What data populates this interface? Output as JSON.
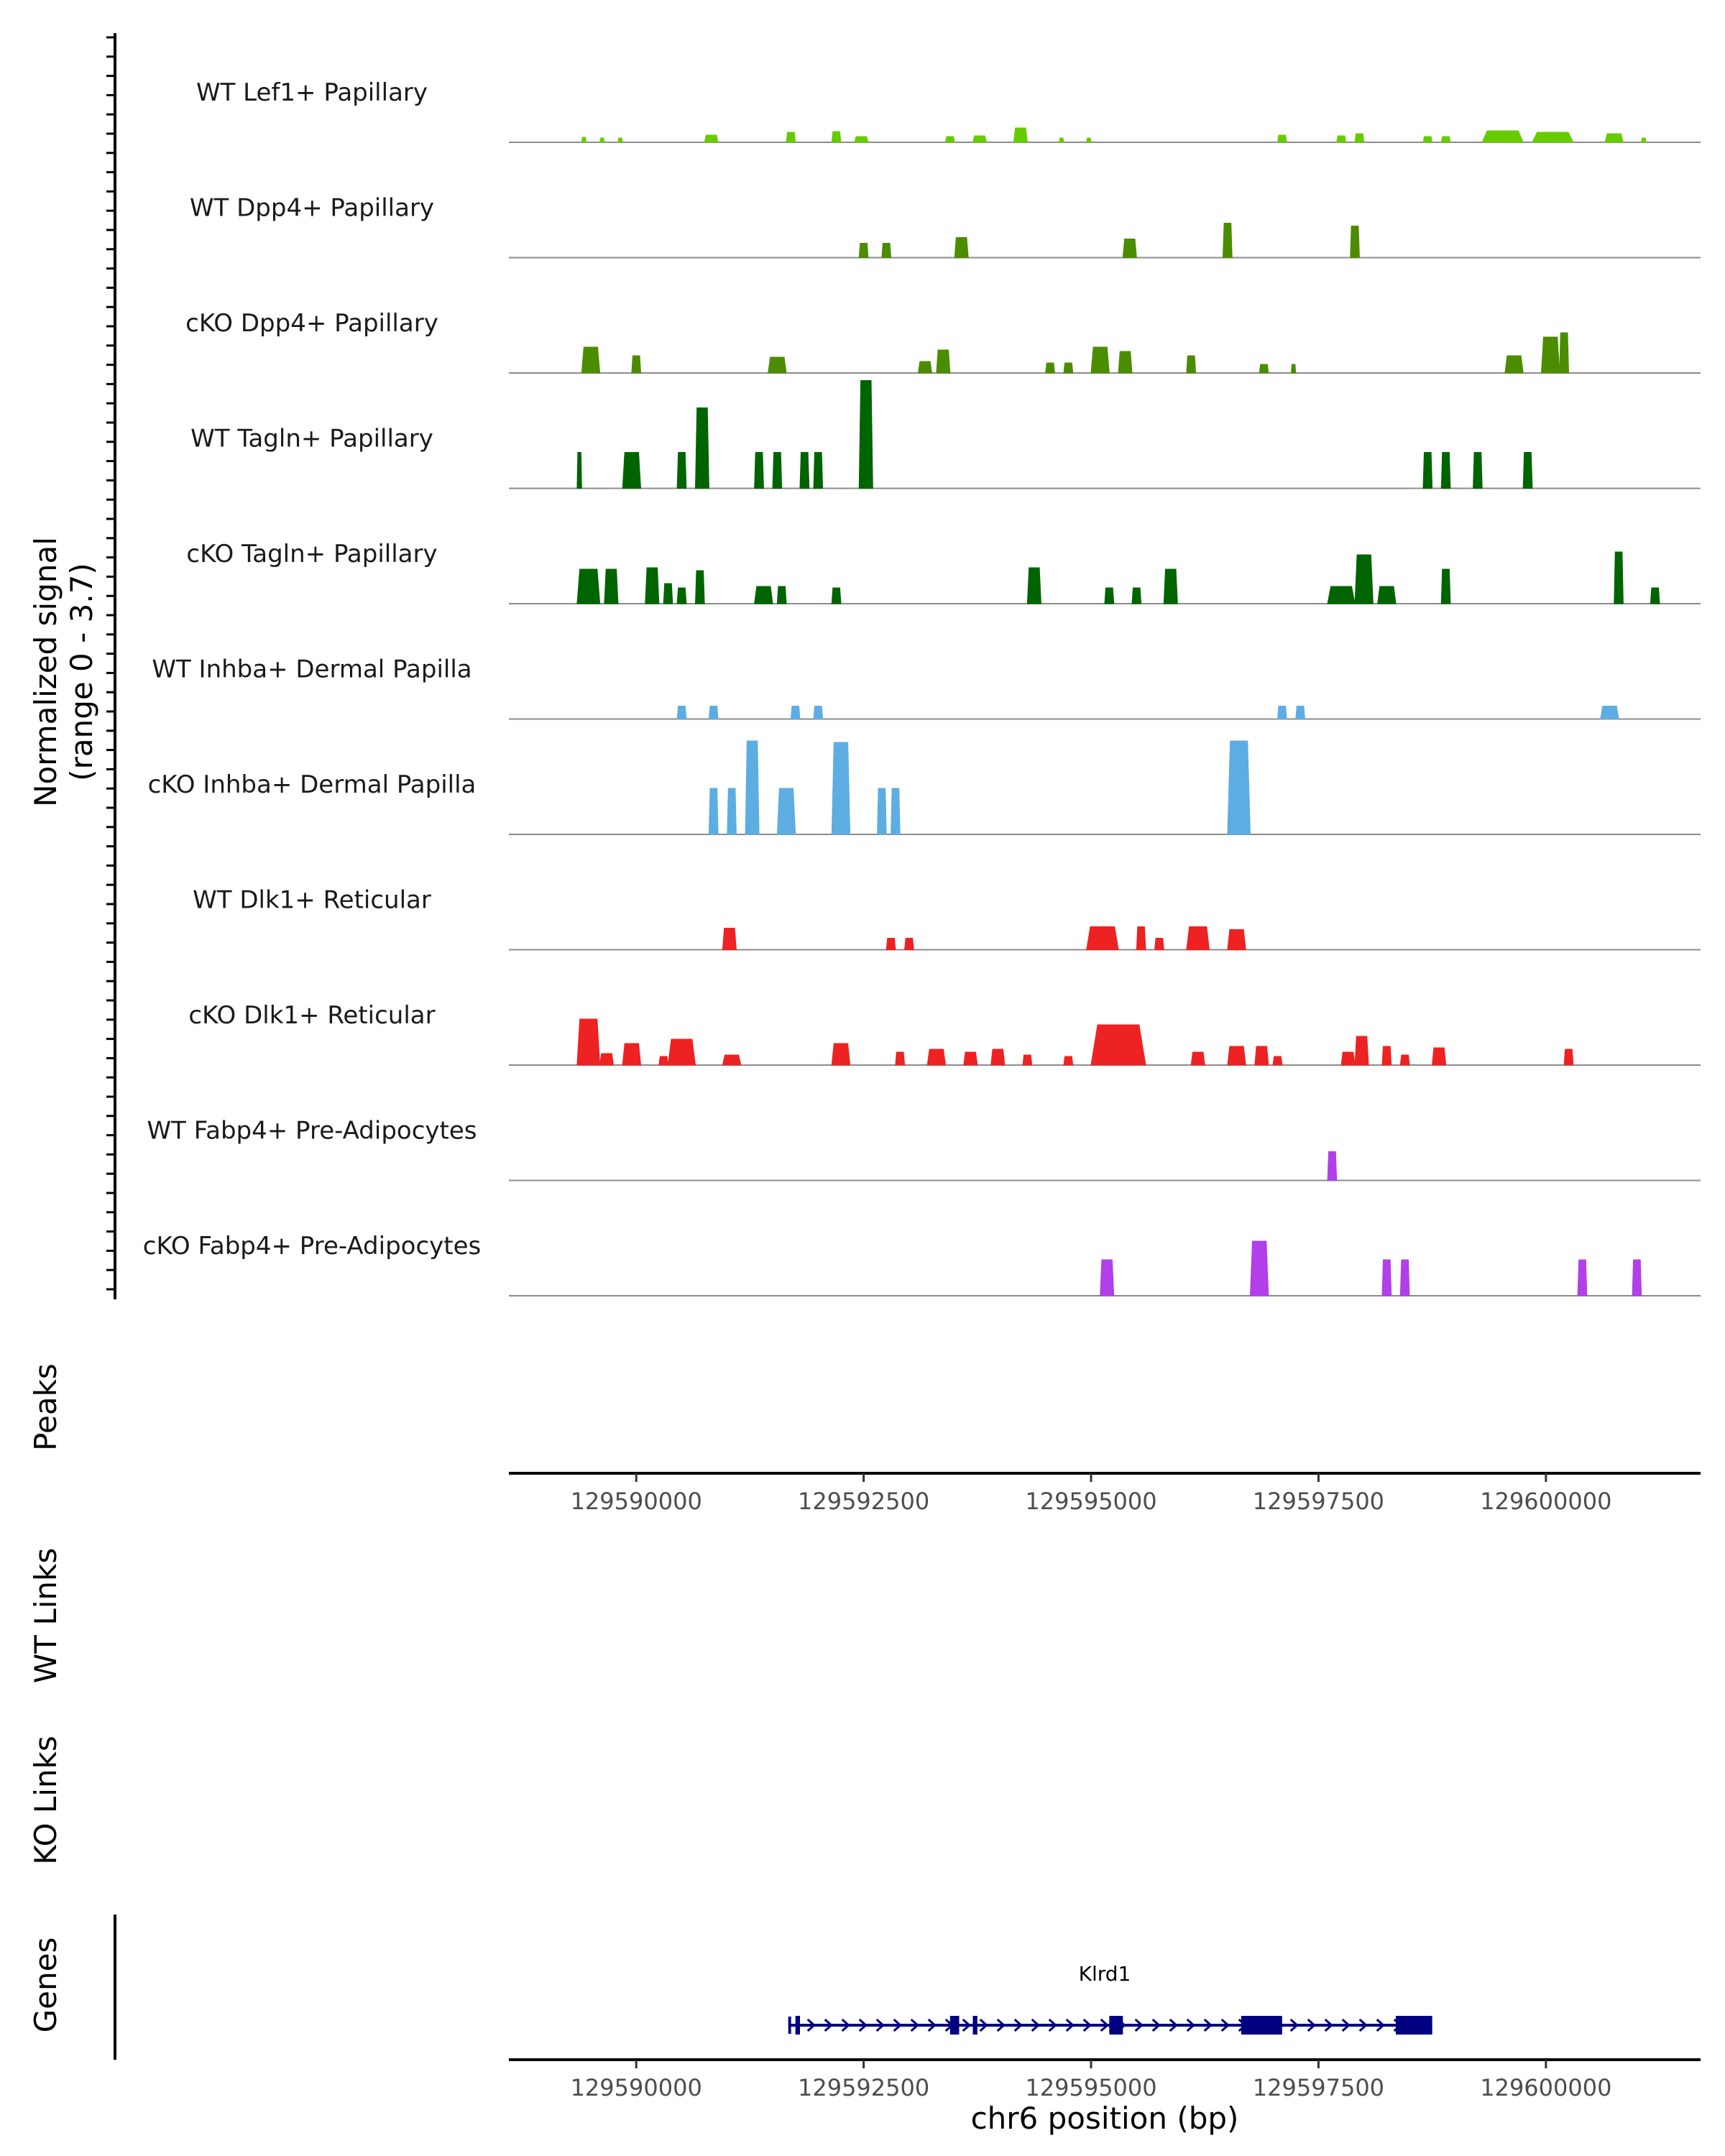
{
  "chart_data": {
    "type": "coverage-track",
    "chromosome": "chr6",
    "xlim": [
      129588600,
      129601700
    ],
    "x_ticks": [
      129590000,
      129592500,
      129595000,
      129597500,
      129600000
    ],
    "x_tick_labels": [
      "129590000",
      "129592500",
      "129595000",
      "129597500",
      "129600000"
    ],
    "xlabel": "chr6 position (bp)",
    "ylabel_signal": [
      "Normalized signal",
      "(range 0 - 3.7)"
    ],
    "y_range": [
      0,
      3.7
    ],
    "section_labels": {
      "peaks": "Peaks",
      "wt_links": "WT Links",
      "ko_links": "KO Links",
      "genes": "Genes"
    },
    "tracks": [
      {
        "name": "WT Lef1+ Papillary",
        "color": "#66CC00",
        "peaks": [
          [
            129589400,
            129589450,
            0.35
          ],
          [
            129589600,
            129589650,
            0.3
          ],
          [
            129589800,
            129589850,
            0.3
          ],
          [
            129590750,
            129590900,
            0.5
          ],
          [
            129591650,
            129591750,
            0.7
          ],
          [
            129592150,
            129592250,
            0.75
          ],
          [
            129592400,
            129592550,
            0.4
          ],
          [
            129593400,
            129593500,
            0.4
          ],
          [
            129593700,
            129593850,
            0.45
          ],
          [
            129594150,
            129594300,
            1.0
          ],
          [
            129594650,
            129594700,
            0.3
          ],
          [
            129594950,
            129595000,
            0.3
          ],
          [
            129597050,
            129597150,
            0.5
          ],
          [
            129597700,
            129597800,
            0.45
          ],
          [
            129597900,
            129598000,
            0.6
          ],
          [
            129598650,
            129598750,
            0.4
          ],
          [
            129598850,
            129598950,
            0.4
          ],
          [
            129599300,
            129599750,
            0.8
          ],
          [
            129599850,
            129600300,
            0.7
          ],
          [
            129600650,
            129600850,
            0.6
          ],
          [
            129601050,
            129601100,
            0.3
          ]
        ]
      },
      {
        "name": "WT Dpp4+ Papillary",
        "color": "#4C8C00",
        "peaks": [
          [
            129592450,
            129592550,
            1.0
          ],
          [
            129592700,
            129592800,
            1.0
          ],
          [
            129593500,
            129593650,
            1.4
          ],
          [
            129595350,
            129595500,
            1.3
          ],
          [
            129596450,
            129596550,
            2.4
          ],
          [
            129597850,
            129597950,
            2.2
          ]
        ]
      },
      {
        "name": "cKO Dpp4+ Papillary",
        "color": "#4C8C00",
        "peaks": [
          [
            129589400,
            129589600,
            1.8
          ],
          [
            129589950,
            129590050,
            1.2
          ],
          [
            129591450,
            129591650,
            1.1
          ],
          [
            129593100,
            129593250,
            0.8
          ],
          [
            129593300,
            129593450,
            1.6
          ],
          [
            129594500,
            129594600,
            0.7
          ],
          [
            129594700,
            129594800,
            0.7
          ],
          [
            129595000,
            129595200,
            1.8
          ],
          [
            129595300,
            129595450,
            1.5
          ],
          [
            129596050,
            129596150,
            1.2
          ],
          [
            129596850,
            129596950,
            0.6
          ],
          [
            129597200,
            129597250,
            0.6
          ],
          [
            129599550,
            129599750,
            1.2
          ],
          [
            129599950,
            129600150,
            2.5
          ],
          [
            129600150,
            129600250,
            2.8
          ]
        ]
      },
      {
        "name": "WT Tagln+ Papillary",
        "color": "#006400",
        "peaks": [
          [
            129589350,
            129589400,
            2.5
          ],
          [
            129589850,
            129590050,
            2.5
          ],
          [
            129590450,
            129590550,
            2.5
          ],
          [
            129590650,
            129590800,
            5.6
          ],
          [
            129591300,
            129591400,
            2.5
          ],
          [
            129591500,
            129591600,
            2.5
          ],
          [
            129591800,
            129591900,
            2.5
          ],
          [
            129591950,
            129592050,
            2.5
          ],
          [
            129592450,
            129592600,
            7.5
          ],
          [
            129598650,
            129598750,
            2.5
          ],
          [
            129598850,
            129598950,
            2.5
          ],
          [
            129599200,
            129599300,
            2.5
          ],
          [
            129599750,
            129599850,
            2.5
          ]
        ]
      },
      {
        "name": "cKO Tagln+ Papillary",
        "color": "#006400",
        "peaks": [
          [
            129589350,
            129589600,
            2.4
          ],
          [
            129589650,
            129589800,
            2.4
          ],
          [
            129590100,
            129590250,
            2.5
          ],
          [
            129590300,
            129590400,
            1.4
          ],
          [
            129590450,
            129590550,
            1.1
          ],
          [
            129590650,
            129590750,
            2.3
          ],
          [
            129591300,
            129591500,
            1.2
          ],
          [
            129591550,
            129591650,
            1.2
          ],
          [
            129592150,
            129592250,
            1.1
          ],
          [
            129594300,
            129594450,
            2.5
          ],
          [
            129595150,
            129595250,
            1.1
          ],
          [
            129595450,
            129595550,
            1.1
          ],
          [
            129595800,
            129595950,
            2.4
          ],
          [
            129597600,
            129597900,
            1.2
          ],
          [
            129597900,
            129598100,
            3.4
          ],
          [
            129598150,
            129598350,
            1.2
          ],
          [
            129598850,
            129598950,
            2.4
          ],
          [
            129600750,
            129600850,
            3.6
          ],
          [
            129601150,
            129601250,
            1.1
          ]
        ]
      },
      {
        "name": "WT Inhba+ Dermal Papilla",
        "color": "#5DADE2",
        "peaks": [
          [
            129590450,
            129590550,
            0.9
          ],
          [
            129590800,
            129590900,
            0.9
          ],
          [
            129591700,
            129591800,
            0.9
          ],
          [
            129591950,
            129592050,
            0.9
          ],
          [
            129597050,
            129597150,
            0.9
          ],
          [
            129597250,
            129597350,
            0.9
          ],
          [
            129600600,
            129600800,
            0.9
          ]
        ]
      },
      {
        "name": "cKO Inhba+ Dermal Papilla",
        "color": "#5DADE2",
        "peaks": [
          [
            129590800,
            129590900,
            3.2
          ],
          [
            129591000,
            129591100,
            3.2
          ],
          [
            129591200,
            129591350,
            6.5
          ],
          [
            129591550,
            129591750,
            3.2
          ],
          [
            129592150,
            129592350,
            6.4
          ],
          [
            129592650,
            129592750,
            3.2
          ],
          [
            129592800,
            129592900,
            3.2
          ],
          [
            129596500,
            129596750,
            6.5
          ]
        ]
      },
      {
        "name": "WT Dlk1+ Reticular",
        "color": "#EE2222",
        "peaks": [
          [
            129590950,
            129591100,
            1.5
          ],
          [
            129592750,
            129592850,
            0.8
          ],
          [
            129592950,
            129593050,
            0.8
          ],
          [
            129594950,
            129595300,
            1.6
          ],
          [
            129595500,
            129595600,
            1.6
          ],
          [
            129595700,
            129595800,
            0.8
          ],
          [
            129596050,
            129596300,
            1.6
          ],
          [
            129596500,
            129596700,
            1.4
          ]
        ]
      },
      {
        "name": "cKO Dlk1+ Reticular",
        "color": "#EE2222",
        "peaks": [
          [
            129589350,
            129589600,
            3.2
          ],
          [
            129589600,
            129589750,
            0.8
          ],
          [
            129589850,
            129590050,
            1.5
          ],
          [
            129590250,
            129590350,
            0.6
          ],
          [
            129590350,
            129590650,
            1.8
          ],
          [
            129590950,
            129591150,
            0.7
          ],
          [
            129592150,
            129592350,
            1.5
          ],
          [
            129592850,
            129592950,
            0.9
          ],
          [
            129593200,
            129593400,
            1.1
          ],
          [
            129593600,
            129593750,
            0.9
          ],
          [
            129593900,
            129594050,
            1.1
          ],
          [
            129594250,
            129594350,
            0.7
          ],
          [
            129594700,
            129594800,
            0.6
          ],
          [
            129595000,
            129595600,
            2.8
          ],
          [
            129596100,
            129596250,
            0.9
          ],
          [
            129596500,
            129596700,
            1.3
          ],
          [
            129596800,
            129596950,
            1.3
          ],
          [
            129597000,
            129597100,
            0.6
          ],
          [
            129597750,
            129597900,
            0.9
          ],
          [
            129597900,
            129598050,
            2.0
          ],
          [
            129598200,
            129598300,
            1.3
          ],
          [
            129598400,
            129598500,
            0.7
          ],
          [
            129598750,
            129598900,
            1.2
          ],
          [
            129600200,
            129600300,
            1.1
          ]
        ]
      },
      {
        "name": "WT Fabp4+ Pre-Adipocytes",
        "color": "#B13FEA",
        "peaks": [
          [
            129597600,
            129597700,
            2.0
          ]
        ]
      },
      {
        "name": "cKO Fabp4+ Pre-Adipocytes",
        "color": "#B13FEA",
        "peaks": [
          [
            129595100,
            129595250,
            2.5
          ],
          [
            129596750,
            129596950,
            3.8
          ],
          [
            129598200,
            129598300,
            2.5
          ],
          [
            129598400,
            129598500,
            2.5
          ],
          [
            129600350,
            129600450,
            2.5
          ],
          [
            129600950,
            129601050,
            2.5
          ]
        ]
      }
    ],
    "gene": {
      "name": "Klrd1",
      "color": "#000080",
      "start": 129591750,
      "end": 129598750,
      "strand": "+",
      "exons": [
        [
          129591750,
          129591800
        ],
        [
          129593450,
          129593550
        ],
        [
          129593700,
          129593750
        ],
        [
          129595200,
          129595350
        ],
        [
          129596650,
          129597100
        ],
        [
          129598350,
          129598750
        ]
      ]
    }
  }
}
